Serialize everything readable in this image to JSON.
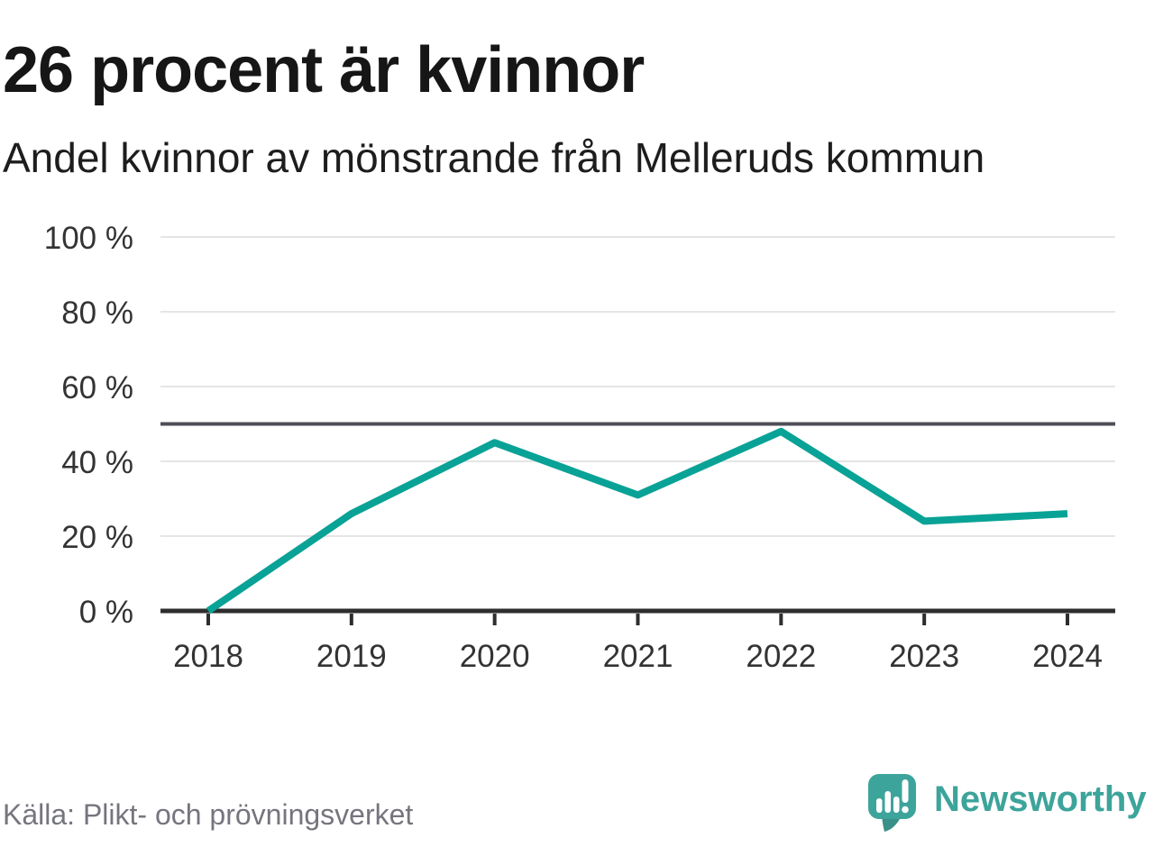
{
  "title": "26 procent är kvinnor",
  "subtitle": "Andel kvinnor av mönstrande från Melleruds kommun",
  "source": "Källa: Plikt- och prövningsverket",
  "brand": {
    "name": "Newsworthy",
    "icon": "speech-bubble-bar-chart-icon"
  },
  "colors": {
    "background": "#ffffff",
    "title_text": "#161616",
    "subtitle_text": "#1d1d1d",
    "tick_label": "#333333",
    "grid": "#e5e5e5",
    "reference": "#4e4e57",
    "axis": "#2e2e2e",
    "line": "#09a296",
    "source_text": "#75757e",
    "brand": "#3da49b",
    "brand_dark": "#399089"
  },
  "chart_data": {
    "type": "line",
    "title": "26 procent är kvinnor",
    "subtitle": "Andel kvinnor av mönstrande från Melleruds kommun",
    "x": [
      2018,
      2019,
      2020,
      2021,
      2022,
      2023,
      2024
    ],
    "series": [
      {
        "name": "Andel kvinnor av mönstrande",
        "values": [
          0,
          26,
          45,
          31,
          48,
          24,
          26
        ]
      }
    ],
    "unit": "%",
    "ylim": [
      0,
      100
    ],
    "y_tick_values": [
      100,
      80,
      60,
      40,
      20,
      0
    ],
    "y_ticks": [
      "100 %",
      "80 %",
      "60 %",
      "40 %",
      "20 %",
      "0 %"
    ],
    "reference_line": 50,
    "grid": true,
    "legend": "none"
  }
}
